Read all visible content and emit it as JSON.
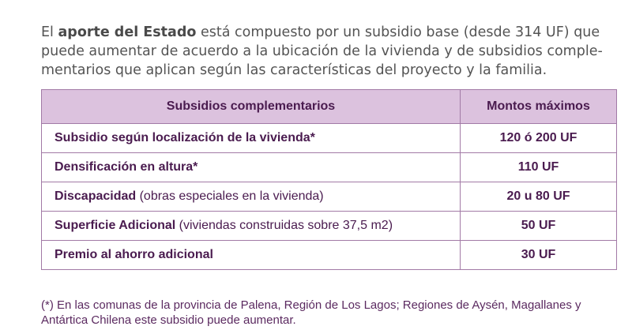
{
  "intro": {
    "prefix": "El ",
    "highlight": "aporte del Estado",
    "rest": " está compuesto por un subsidio base (desde 314 UF) que puede aumentar de acuerdo a la ubicación de la vivienda y de subsidios comple-mentarios que aplican según las características del proyecto y la familia."
  },
  "table": {
    "headers": [
      "Subsidios complementarios",
      "Montos máximos"
    ],
    "rows": [
      {
        "concept": "Subsidio según localización de la vivienda*",
        "note": "",
        "amount": "120 ó 200 UF"
      },
      {
        "concept": "Densificación en altura*",
        "note": "",
        "amount": "110 UF"
      },
      {
        "concept": "Discapacidad",
        "note": " (obras especiales en la vivienda)",
        "amount": "20 u 80 UF"
      },
      {
        "concept": "Superficie Adicional",
        "note": " (viviendas construidas sobre 37,5 m2)",
        "amount": "50 UF"
      },
      {
        "concept": "Premio al ahorro adicional",
        "note": "",
        "amount": "30 UF"
      }
    ]
  },
  "footnote": "(*) En las comunas de la provincia de Palena, Región de Los Lagos; Regiones de Aysén, Magallanes y Antártica Chilena este subsidio puede aumentar."
}
